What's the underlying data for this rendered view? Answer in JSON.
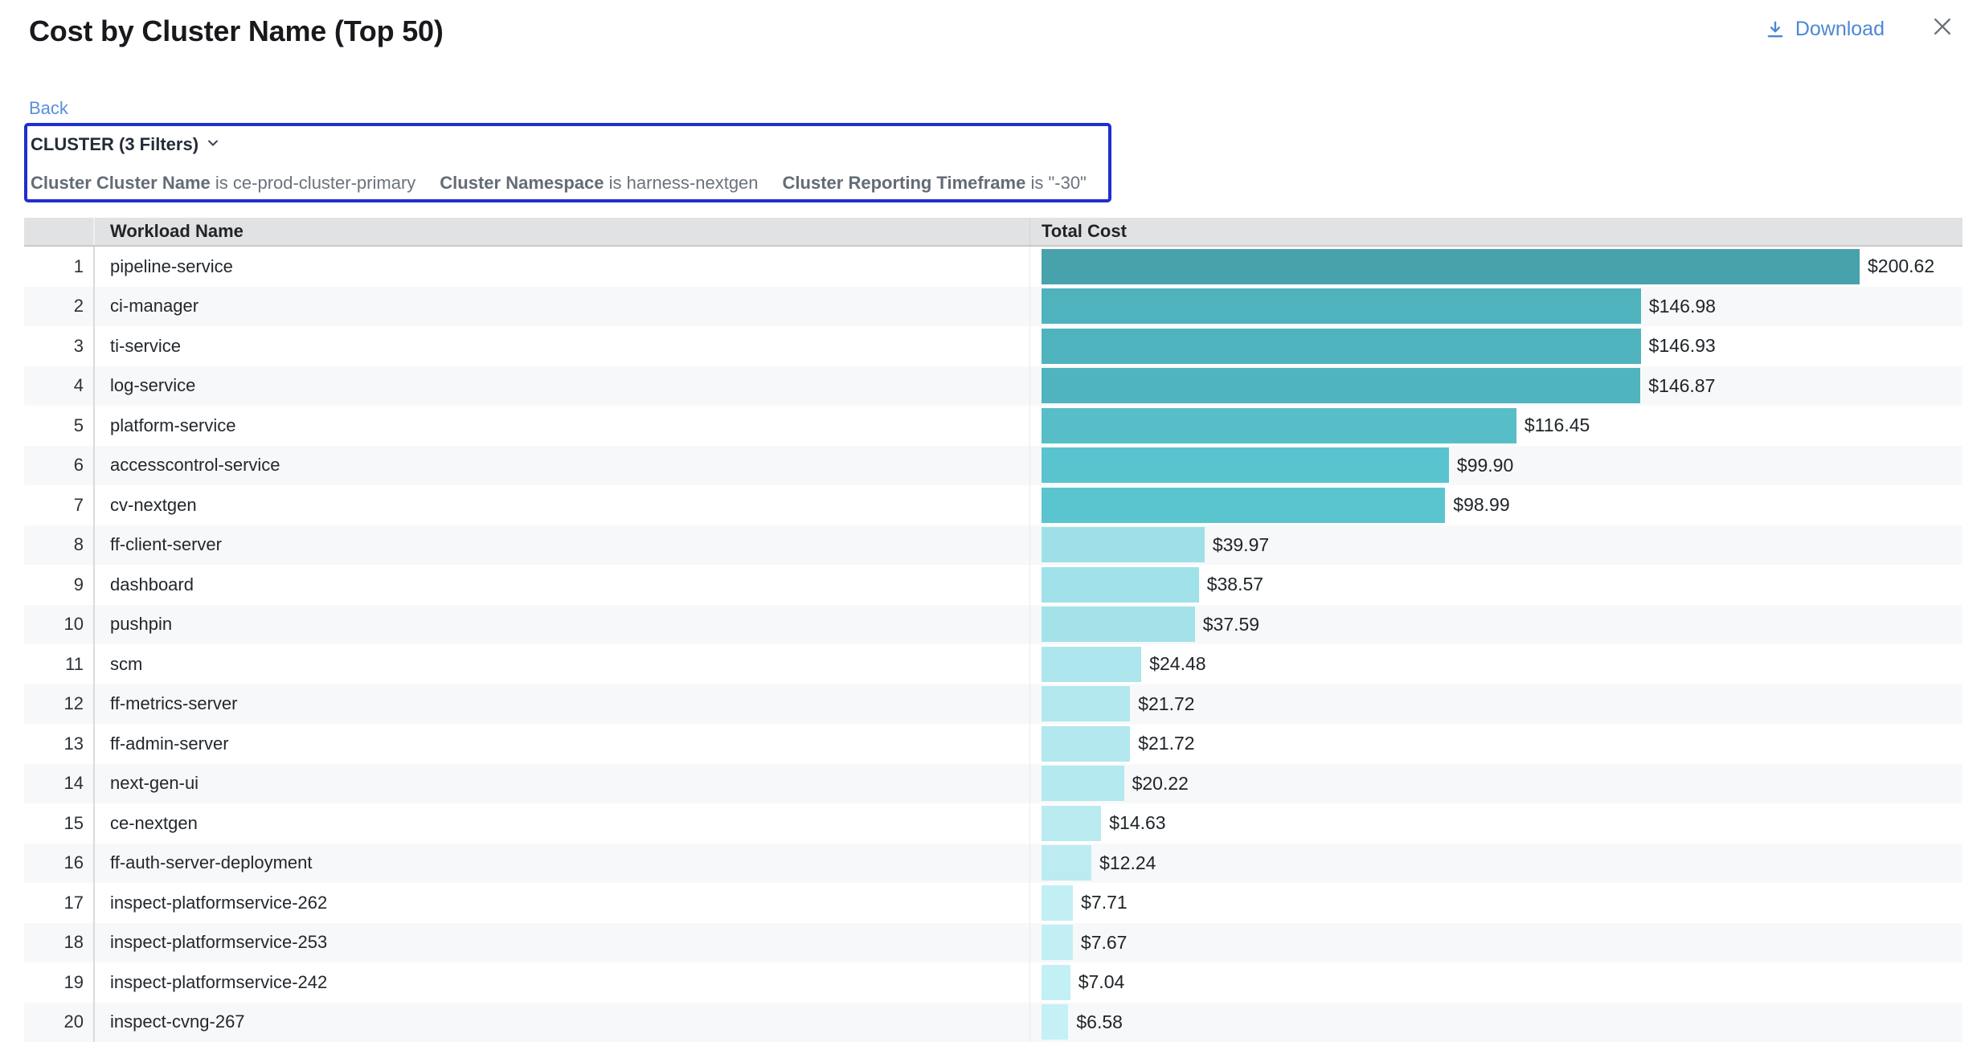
{
  "header": {
    "title": "Cost by Cluster Name (Top 50)",
    "download_label": "Download"
  },
  "nav": {
    "back_label": "Back"
  },
  "filter_panel": {
    "summary": "CLUSTER (3 Filters)",
    "border_color": "#1f2ed0",
    "filters": [
      {
        "field": "Cluster Cluster Name",
        "op": "is",
        "value": "ce-prod-cluster-primary"
      },
      {
        "field": "Cluster Namespace",
        "op": "is",
        "value": "harness-nextgen"
      },
      {
        "field": "Cluster Reporting Timeframe",
        "op": "is",
        "value": "\"-30\""
      }
    ]
  },
  "table": {
    "columns": {
      "rank": "",
      "workload": "Workload Name",
      "cost": "Total Cost"
    }
  },
  "chart_data": {
    "type": "bar",
    "orientation": "horizontal",
    "title": "Cost by Cluster Name (Top 50)",
    "xlabel": "Total Cost",
    "ylabel": "Workload Name",
    "xlim": [
      0,
      210
    ],
    "grid": false,
    "legend": false,
    "ranks": [
      1,
      2,
      3,
      4,
      5,
      6,
      7,
      8,
      9,
      10,
      11,
      12,
      13,
      14,
      15,
      16,
      17,
      18,
      19,
      20
    ],
    "categories": [
      "pipeline-service",
      "ci-manager",
      "ti-service",
      "log-service",
      "platform-service",
      "accesscontrol-service",
      "cv-nextgen",
      "ff-client-server",
      "dashboard",
      "pushpin",
      "scm",
      "ff-metrics-server",
      "ff-admin-server",
      "next-gen-ui",
      "ce-nextgen",
      "ff-auth-server-deployment",
      "inspect-platformservice-262",
      "inspect-platformservice-253",
      "inspect-platformservice-242",
      "inspect-cvng-267"
    ],
    "values": [
      200.62,
      146.98,
      146.93,
      146.87,
      116.45,
      99.9,
      98.99,
      39.97,
      38.57,
      37.59,
      24.48,
      21.72,
      21.72,
      20.22,
      14.63,
      12.24,
      7.71,
      7.67,
      7.04,
      6.58
    ],
    "value_labels": [
      "$200.62",
      "$146.98",
      "$146.93",
      "$146.87",
      "$116.45",
      "$99.90",
      "$98.99",
      "$39.97",
      "$38.57",
      "$37.59",
      "$24.48",
      "$21.72",
      "$21.72",
      "$20.22",
      "$14.63",
      "$12.24",
      "$7.71",
      "$7.67",
      "$7.04",
      "$6.58"
    ],
    "bar_colors": [
      "#47a2ab",
      "#4fb3be",
      "#4fb3be",
      "#50b4bf",
      "#57bec8",
      "#5ac4ce",
      "#5bc5cf",
      "#9fe0e8",
      "#a1e1e9",
      "#a3e2e9",
      "#aee6ed",
      "#b2e8ee",
      "#b2e8ee",
      "#b3e9ef",
      "#b9ebf1",
      "#bcecf2",
      "#c2eff4",
      "#c2eff4",
      "#c3f0f4",
      "#c5f0f5"
    ]
  }
}
